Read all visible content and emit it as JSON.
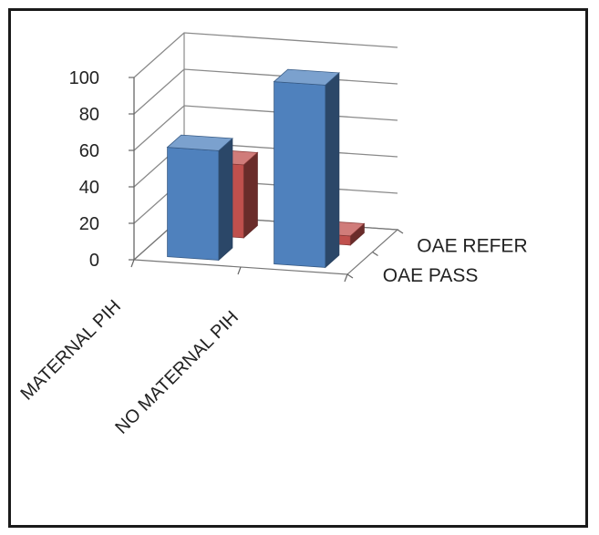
{
  "chart_data": {
    "type": "bar",
    "title": "",
    "xlabel": "",
    "ylabel": "",
    "ylim": [
      0,
      100
    ],
    "yticks": [
      0,
      20,
      40,
      60,
      80,
      100
    ],
    "categories": [
      "MATERNAL PIH",
      "NO MATERNAL PIH"
    ],
    "series": [
      {
        "name": "OAE PASS",
        "values": [
          60,
          100
        ],
        "color": "#4f81bd"
      },
      {
        "name": "OAE REFER",
        "values": [
          40,
          5
        ],
        "color": "#c0504d"
      }
    ],
    "grid": true,
    "legend_placement": "right"
  }
}
